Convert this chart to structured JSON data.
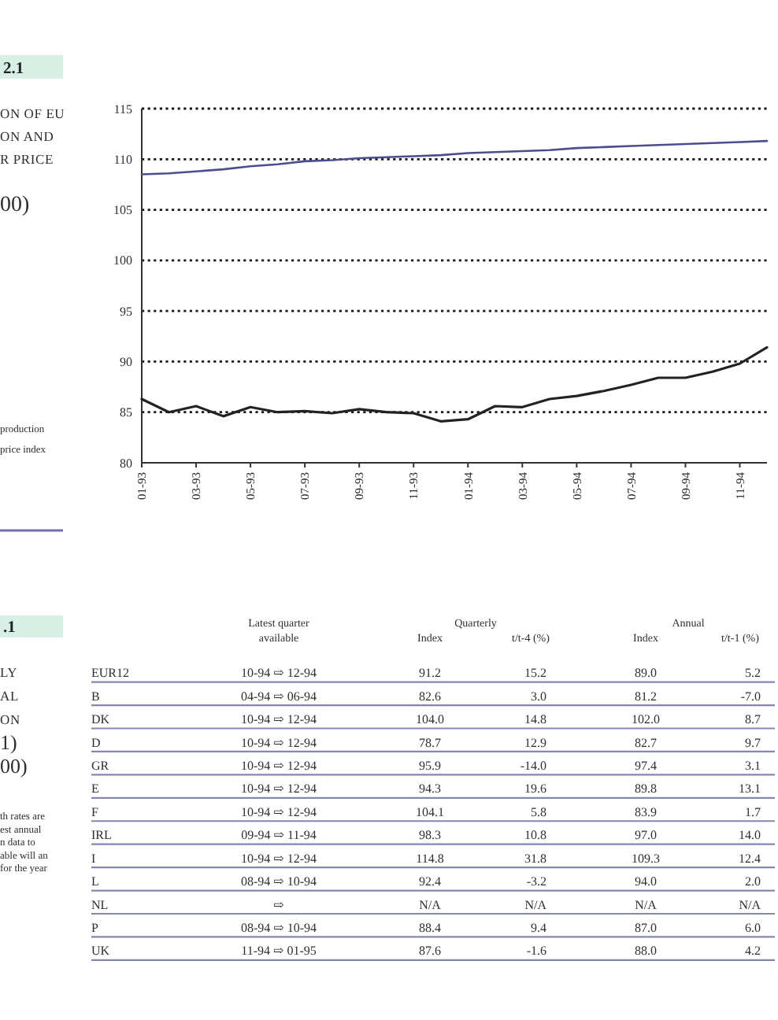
{
  "chart_data": [
    {
      "type": "line",
      "title": "2.1",
      "subtitle": "ON OF EU\nON AND\nR PRICE",
      "annotations": [
        "00)",
        "production",
        "price index"
      ],
      "categories": [
        "01-93",
        null,
        "03-93",
        null,
        "05-93",
        null,
        "07-93",
        null,
        "09-93",
        null,
        "11-93",
        null,
        "01-94",
        null,
        "03-94",
        null,
        "05-94",
        null,
        "07-94",
        null,
        "09-94",
        null,
        "11-94",
        null
      ],
      "series": [
        {
          "color": "#4a4e8f",
          "values": [
            108.5,
            108.6,
            108.8,
            109.0,
            109.3,
            109.5,
            109.8,
            109.9,
            110.1,
            110.2,
            110.3,
            110.4,
            110.6,
            110.7,
            110.8,
            110.9,
            111.1,
            111.2,
            111.3,
            111.4,
            111.5,
            111.6,
            111.7,
            111.8
          ]
        },
        {
          "color": "#222222",
          "values": [
            86.3,
            85.0,
            85.6,
            84.6,
            85.5,
            85.0,
            85.1,
            84.9,
            85.3,
            85.0,
            84.9,
            84.1,
            84.3,
            85.6,
            85.5,
            86.3,
            86.6,
            87.1,
            87.7,
            88.4,
            88.4,
            89.0,
            89.8,
            91.4
          ]
        }
      ],
      "ylim": [
        80,
        115
      ],
      "yticks": [
        80,
        85,
        90,
        95,
        100,
        105,
        110,
        115
      ],
      "grid": "y"
    },
    {
      "type": "other",
      "title": ".1",
      "subtitle": "LY\nAL\nON",
      "annotations": [
        "1)\n00)",
        "th rates are\nest annual\nn data to\nable will an\nfor the year",
        "Quarterly",
        "Annual"
      ],
      "categories": [
        "Latest quarter available",
        "Index",
        "t/t-4 (%)",
        "Index",
        "t/t-1 (%)"
      ],
      "y_categories": [
        "EUR12",
        "B",
        "DK",
        "D",
        "GR",
        "E",
        "F",
        "IRL",
        "I",
        "L",
        "NL",
        "P",
        "UK"
      ],
      "cell_labels": [
        [
          "10-94 ⇨ 12-94",
          "91.2",
          "15.2",
          "89.0",
          "5.2"
        ],
        [
          "04-94 ⇨ 06-94",
          "82.6",
          "3.0",
          "81.2",
          "-7.0"
        ],
        [
          "10-94 ⇨ 12-94",
          "104.0",
          "14.8",
          "102.0",
          "8.7"
        ],
        [
          "10-94 ⇨ 12-94",
          "78.7",
          "12.9",
          "82.7",
          "9.7"
        ],
        [
          "10-94 ⇨ 12-94",
          "95.9",
          "-14.0",
          "97.4",
          "3.1"
        ],
        [
          "10-94 ⇨ 12-94",
          "94.3",
          "19.6",
          "89.8",
          "13.1"
        ],
        [
          "10-94 ⇨ 12-94",
          "104.1",
          "5.8",
          "83.9",
          "1.7"
        ],
        [
          "09-94 ⇨ 11-94",
          "98.3",
          "10.8",
          "97.0",
          "14.0"
        ],
        [
          "10-94 ⇨ 12-94",
          "114.8",
          "31.8",
          "109.3",
          "12.4"
        ],
        [
          "08-94 ⇨ 10-94",
          "92.4",
          "-3.2",
          "94.0",
          "2.0"
        ],
        [
          "⇨",
          "N/A",
          "N/A",
          "N/A",
          "N/A"
        ],
        [
          "08-94 ⇨ 10-94",
          "88.4",
          "9.4",
          "87.0",
          "6.0"
        ],
        [
          "11-94 ⇨ 01-95",
          "87.6",
          "-1.6",
          "88.0",
          "4.2"
        ]
      ]
    }
  ]
}
